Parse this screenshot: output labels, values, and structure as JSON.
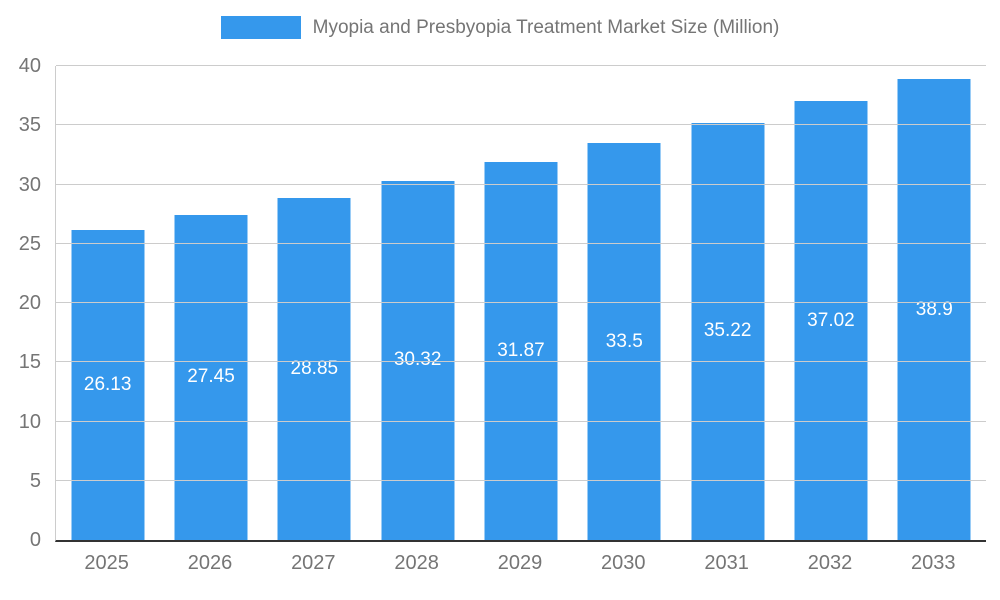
{
  "chart_data": {
    "type": "bar",
    "title": "Myopia and Presbyopia Treatment Market Size (Million)",
    "categories": [
      "2025",
      "2026",
      "2027",
      "2028",
      "2029",
      "2030",
      "2031",
      "2032",
      "2033"
    ],
    "values": [
      26.13,
      27.45,
      28.85,
      30.32,
      31.87,
      33.5,
      35.22,
      37.02,
      38.9
    ],
    "xlabel": "",
    "ylabel": "",
    "ylim": [
      0,
      40
    ],
    "yticks": [
      0,
      5,
      10,
      15,
      20,
      25,
      30,
      35,
      40
    ],
    "grid": "horizontal",
    "legend_position": "top",
    "bar_color": "#3598ec",
    "bar_label_color": "#ffffff",
    "axis_text_color": "#757575",
    "grid_color": "#cccccc"
  }
}
